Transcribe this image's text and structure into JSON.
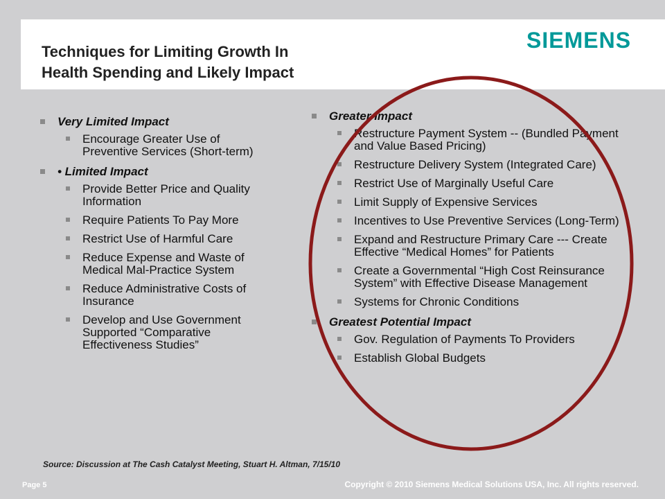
{
  "slide": {
    "title_line1": "Techniques for Limiting Growth In",
    "title_line2": "Health Spending and Likely Impact",
    "logo_text": "SIEMENS"
  },
  "left_column": [
    {
      "heading": "Very Limited Impact",
      "items": [
        "Encourage Greater Use of Preventive Services (Short-term)"
      ]
    },
    {
      "heading": "• Limited Impact",
      "items": [
        "Provide Better Price and Quality Information",
        "Require Patients To Pay More",
        "Restrict Use of Harmful Care",
        "Reduce Expense and Waste of Medical Mal-Practice System",
        "Reduce Administrative Costs of Insurance",
        "Develop and Use Government Supported “Comparative Effectiveness Studies”"
      ]
    }
  ],
  "right_column": [
    {
      "heading": "Greater Impact",
      "items": [
        "Restructure Payment System -- (Bundled Payment and Value Based Pricing)",
        "Restructure Delivery System (Integrated Care)",
        "Restrict Use of Marginally Useful Care",
        "Limit Supply of Expensive Services",
        "Incentives to Use Preventive Services (Long-Term)",
        "Expand and Restructure Primary Care --- Create Effective “Medical Homes” for Patients",
        "Create a Governmental “High Cost Reinsurance System” with Effective Disease Management",
        "Systems for Chronic Conditions"
      ]
    },
    {
      "heading": "Greatest Potential Impact",
      "items": [
        "Gov. Regulation of Payments To Providers",
        "Establish Global Budgets"
      ]
    }
  ],
  "source": "Source: Discussion at The Cash Catalyst Meeting, Stuart H. Altman, 7/15/10",
  "footer": {
    "page": "Page 5",
    "copyright": "Copyright © 2010 Siemens Medical Solutions USA, Inc. All rights reserved."
  },
  "colors": {
    "brand": "#009999",
    "annotation_circle": "#8b1a1a",
    "background": "#cfcfd1"
  }
}
